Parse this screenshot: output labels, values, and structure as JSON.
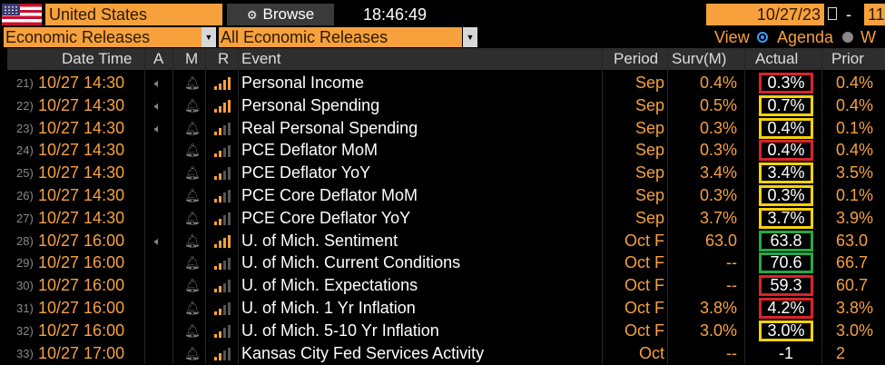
{
  "toolbar": {
    "country": "United States",
    "browse_label": "Browse",
    "browse_icon": "settings-gear-icon",
    "clock": "18:46:49",
    "start_date": "10/27/23",
    "end_date": "11",
    "date_separator": "-"
  },
  "filters": {
    "category": "Economic Releases",
    "subcategory": "All Economic Releases",
    "view_label": "View",
    "view_agenda": "Agenda",
    "view_other": "W"
  },
  "columns": [
    "Date Time",
    "A",
    "M",
    "R",
    "Event",
    "Period",
    "Surv(M)",
    "Actual",
    "Prior"
  ],
  "colors": {
    "accent": "#f7a13d",
    "box_red": "#d9232a",
    "box_yellow": "#f5d20a",
    "box_green": "#27a844"
  },
  "rows": [
    {
      "num": "21)",
      "datetime": "10/27 14:30",
      "alert": true,
      "relevance": 4,
      "event": "Personal Income",
      "period": "Sep",
      "survey": "0.4%",
      "actual": "0.3%",
      "prior": "0.4%",
      "box": "red"
    },
    {
      "num": "22)",
      "datetime": "10/27 14:30",
      "alert": true,
      "relevance": 4,
      "event": "Personal Spending",
      "period": "Sep",
      "survey": "0.5%",
      "actual": "0.7%",
      "prior": "0.4%",
      "box": "yellow"
    },
    {
      "num": "23)",
      "datetime": "10/27 14:30",
      "alert": true,
      "relevance": 2,
      "event": "Real Personal Spending",
      "period": "Sep",
      "survey": "0.3%",
      "actual": "0.4%",
      "prior": "0.1%",
      "box": "yellow"
    },
    {
      "num": "24)",
      "datetime": "10/27 14:30",
      "alert": false,
      "relevance": 2,
      "event": "PCE Deflator MoM",
      "period": "Sep",
      "survey": "0.3%",
      "actual": "0.4%",
      "prior": "0.4%",
      "box": "red"
    },
    {
      "num": "25)",
      "datetime": "10/27 14:30",
      "alert": false,
      "relevance": 2,
      "event": "PCE Deflator YoY",
      "period": "Sep",
      "survey": "3.4%",
      "actual": "3.4%",
      "prior": "3.5%",
      "box": "yellow"
    },
    {
      "num": "26)",
      "datetime": "10/27 14:30",
      "alert": false,
      "relevance": 2,
      "event": "PCE Core Deflator MoM",
      "period": "Sep",
      "survey": "0.3%",
      "actual": "0.3%",
      "prior": "0.1%",
      "box": "yellow"
    },
    {
      "num": "27)",
      "datetime": "10/27 14:30",
      "alert": false,
      "relevance": 2,
      "event": "PCE Core Deflator YoY",
      "period": "Sep",
      "survey": "3.7%",
      "actual": "3.7%",
      "prior": "3.9%",
      "box": "yellow"
    },
    {
      "num": "28)",
      "datetime": "10/27 16:00",
      "alert": true,
      "relevance": 4,
      "event": "U. of Mich. Sentiment",
      "period": "Oct F",
      "survey": "63.0",
      "actual": "63.8",
      "prior": "63.0",
      "box": "green"
    },
    {
      "num": "29)",
      "datetime": "10/27 16:00",
      "alert": false,
      "relevance": 2,
      "event": "U. of Mich. Current Conditions",
      "period": "Oct F",
      "survey": "--",
      "actual": "70.6",
      "prior": "66.7",
      "box": "green"
    },
    {
      "num": "30)",
      "datetime": "10/27 16:00",
      "alert": false,
      "relevance": 2,
      "event": "U. of Mich. Expectations",
      "period": "Oct F",
      "survey": "--",
      "actual": "59.3",
      "prior": "60.7",
      "box": "red"
    },
    {
      "num": "31)",
      "datetime": "10/27 16:00",
      "alert": false,
      "relevance": 2,
      "event": "U. of Mich. 1 Yr Inflation",
      "period": "Oct F",
      "survey": "3.8%",
      "actual": "4.2%",
      "prior": "3.8%",
      "box": "red"
    },
    {
      "num": "32)",
      "datetime": "10/27 16:00",
      "alert": false,
      "relevance": 2,
      "event": "U. of Mich. 5-10 Yr Inflation",
      "period": "Oct F",
      "survey": "3.0%",
      "actual": "3.0%",
      "prior": "3.0%",
      "box": "yellow"
    },
    {
      "num": "33)",
      "datetime": "10/27 17:00",
      "alert": false,
      "relevance": 2,
      "event": "Kansas City Fed Services Activity",
      "period": "Oct",
      "survey": "--",
      "actual": "-1",
      "prior": "2",
      "box": ""
    }
  ]
}
